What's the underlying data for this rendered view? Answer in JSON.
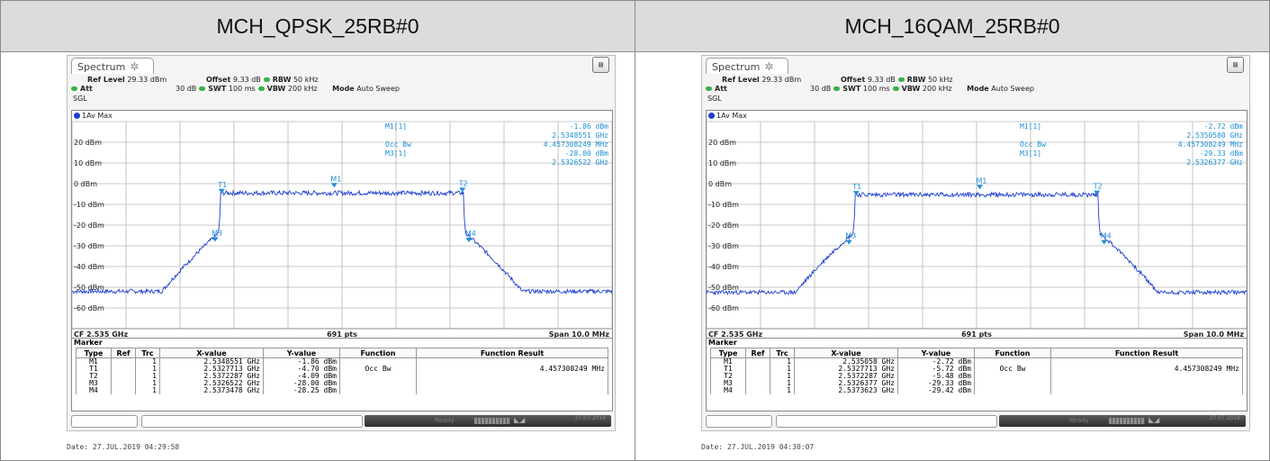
{
  "panels": [
    {
      "title": "MCH_QPSK_25RB#0",
      "tab": "Spectrum",
      "settings": {
        "ref_level_label": "Ref Level",
        "ref_level": "29.33 dBm",
        "offset_label": "Offset",
        "offset": "9.33 dB",
        "rbw_label": "RBW",
        "rbw": "50 kHz",
        "att_label": "Att",
        "att": "30 dB",
        "swt_label": "SWT",
        "swt": "100 ms",
        "vbw_label": "VBW",
        "vbw": "200 kHz",
        "mode_label": "Mode",
        "mode": "Auto Sweep",
        "sgl": "SGL"
      },
      "trace_label": "1Av Max",
      "readout": {
        "m1_label": "M1[1]",
        "m1_level": "-1.86 dBm",
        "m1_freq": "2.5348551 GHz",
        "occ_label": "Occ Bw",
        "occ_value": "4.457308249 MHz",
        "m3_label": "M3[1]",
        "m3_level": "-28.00 dBm",
        "m3_freq": "2.5326522 GHz"
      },
      "y_ticks": [
        "20 dBm",
        "10 dBm",
        "0 dBm",
        "-10 dBm",
        "-20 dBm",
        "-30 dBm",
        "-40 dBm",
        "-50 dBm",
        "-60 dBm"
      ],
      "footer": {
        "cf": "CF 2.535 GHz",
        "pts": "691 pts",
        "span": "Span 10.0 MHz"
      },
      "marker_title": "Marker",
      "marker_headers": [
        "Type",
        "Ref",
        "Trc",
        "X-value",
        "Y-value",
        "Function",
        "Function Result"
      ],
      "marker_rows": [
        {
          "type": "M1",
          "ref": "",
          "trc": "1",
          "x": "2.5348551 GHz",
          "y": "-1.86 dBm",
          "func": "",
          "result": ""
        },
        {
          "type": "T1",
          "ref": "",
          "trc": "1",
          "x": "2.5327713 GHz",
          "y": "-4.70 dBm",
          "func": "Occ Bw",
          "result": "4.457308249 MHz"
        },
        {
          "type": "T2",
          "ref": "",
          "trc": "1",
          "x": "2.5372287 GHz",
          "y": "-4.09 dBm",
          "func": "",
          "result": ""
        },
        {
          "type": "M3",
          "ref": "",
          "trc": "1",
          "x": "2.5326522 GHz",
          "y": "-28.00 dBm",
          "func": "",
          "result": ""
        },
        {
          "type": "M4",
          "ref": "",
          "trc": "1",
          "x": "2.5373478 GHz",
          "y": "-28.25 dBm",
          "func": "",
          "result": ""
        }
      ],
      "status": {
        "ready": "Ready",
        "date": "27.07.2019"
      },
      "date_line": "Date: 27.JUL.2019  04:29:58",
      "chart_data": {
        "type": "line",
        "x_unit": "MHz offset from CF",
        "xlim": [
          -5,
          5
        ],
        "y_unit": "dBm",
        "ylim": [
          -70,
          30
        ],
        "grid": true,
        "occ_bw_edges": [
          -2.229,
          2.229
        ],
        "in_band_level": -4.5,
        "noise_floor": -52,
        "markers": [
          {
            "name": "T1",
            "x": -2.229,
            "y": -4.7
          },
          {
            "name": "M1",
            "x": -0.145,
            "y": -1.86
          },
          {
            "name": "T2",
            "x": 2.229,
            "y": -4.09
          },
          {
            "name": "M3",
            "x": -2.348,
            "y": -28.0
          },
          {
            "name": "M4",
            "x": 2.348,
            "y": -28.25
          }
        ]
      }
    },
    {
      "title": "MCH_16QAM_25RB#0",
      "tab": "Spectrum",
      "settings": {
        "ref_level_label": "Ref Level",
        "ref_level": "29.33 dBm",
        "offset_label": "Offset",
        "offset": "9.33 dB",
        "rbw_label": "RBW",
        "rbw": "50 kHz",
        "att_label": "Att",
        "att": "30 dB",
        "swt_label": "SWT",
        "swt": "100 ms",
        "vbw_label": "VBW",
        "vbw": "200 kHz",
        "mode_label": "Mode",
        "mode": "Auto Sweep",
        "sgl": "SGL"
      },
      "trace_label": "1Av Max",
      "readout": {
        "m1_label": "M1[1]",
        "m1_level": "-2.72 dBm",
        "m1_freq": "2.5350580 GHz",
        "occ_label": "Occ Bw",
        "occ_value": "4.457308249 MHz",
        "m3_label": "M3[1]",
        "m3_level": "-29.33 dBm",
        "m3_freq": "2.5326377 GHz"
      },
      "y_ticks": [
        "20 dBm",
        "10 dBm",
        "0 dBm",
        "-10 dBm",
        "-20 dBm",
        "-30 dBm",
        "-40 dBm",
        "-50 dBm",
        "-60 dBm"
      ],
      "footer": {
        "cf": "CF 2.535 GHz",
        "pts": "691 pts",
        "span": "Span 10.0 MHz"
      },
      "marker_title": "Marker",
      "marker_headers": [
        "Type",
        "Ref",
        "Trc",
        "X-value",
        "Y-value",
        "Function",
        "Function Result"
      ],
      "marker_rows": [
        {
          "type": "M1",
          "ref": "",
          "trc": "1",
          "x": "2.535058 GHz",
          "y": "-2.72 dBm",
          "func": "",
          "result": ""
        },
        {
          "type": "T1",
          "ref": "",
          "trc": "1",
          "x": "2.5327713 GHz",
          "y": "-5.72 dBm",
          "func": "Occ Bw",
          "result": "4.457308249 MHz"
        },
        {
          "type": "T2",
          "ref": "",
          "trc": "1",
          "x": "2.5372287 GHz",
          "y": "-5.48 dBm",
          "func": "",
          "result": ""
        },
        {
          "type": "M3",
          "ref": "",
          "trc": "1",
          "x": "2.5326377 GHz",
          "y": "-29.33 dBm",
          "func": "",
          "result": ""
        },
        {
          "type": "M4",
          "ref": "",
          "trc": "1",
          "x": "2.5373623 GHz",
          "y": "-29.42 dBm",
          "func": "",
          "result": ""
        }
      ],
      "status": {
        "ready": "Ready",
        "date": "27.07.2019"
      },
      "date_line": "Date: 27.JUL.2019  04:30:07",
      "chart_data": {
        "type": "line",
        "x_unit": "MHz offset from CF",
        "xlim": [
          -5,
          5
        ],
        "y_unit": "dBm",
        "ylim": [
          -70,
          30
        ],
        "grid": true,
        "occ_bw_edges": [
          -2.229,
          2.229
        ],
        "in_band_level": -5.3,
        "noise_floor": -52.5,
        "markers": [
          {
            "name": "T1",
            "x": -2.229,
            "y": -5.72
          },
          {
            "name": "M1",
            "x": 0.058,
            "y": -2.72
          },
          {
            "name": "T2",
            "x": 2.229,
            "y": -5.48
          },
          {
            "name": "M3",
            "x": -2.362,
            "y": -29.33
          },
          {
            "name": "M4",
            "x": 2.362,
            "y": -29.42
          }
        ]
      }
    }
  ]
}
